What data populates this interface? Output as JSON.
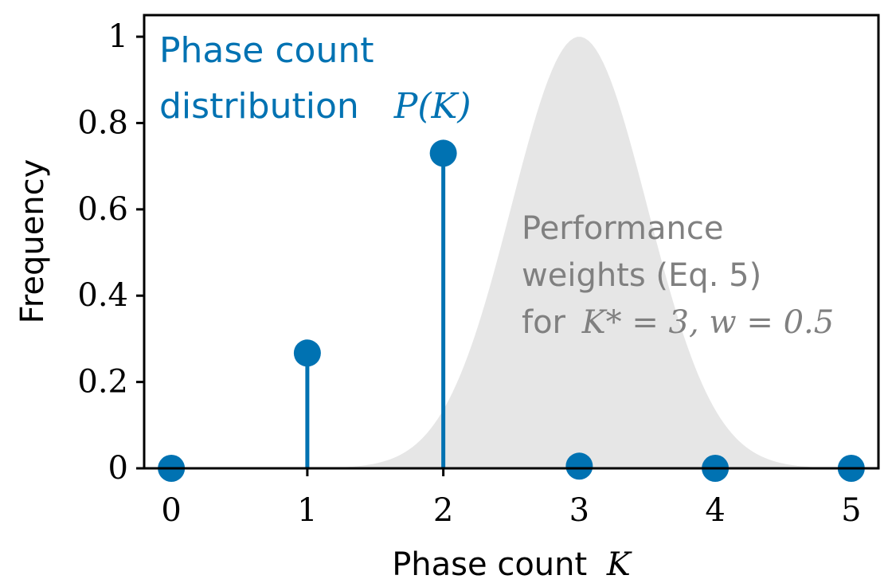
{
  "chart_data": {
    "type": "scatter",
    "style": "stem",
    "xlabel": "Phase count",
    "xlabel_math": "K",
    "ylabel": "Frequency",
    "xlim": [
      -0.2,
      5.2
    ],
    "ylim": [
      0,
      1.05
    ],
    "x_ticks": [
      0,
      1,
      2,
      3,
      4,
      5
    ],
    "x_tick_labels": [
      "0",
      "1",
      "2",
      "3",
      "4",
      "5"
    ],
    "y_ticks": [
      0,
      0.2,
      0.4,
      0.6,
      0.8,
      1
    ],
    "y_tick_labels": [
      "0",
      "0.2",
      "0.4",
      "0.6",
      "0.8",
      "1"
    ],
    "grid": false,
    "series": [
      {
        "name": "Phase count distribution",
        "name_line1": "Phase count",
        "name_line2": "distribution",
        "name_math": "P(K)",
        "color": "#0072b2",
        "x": [
          0,
          1,
          2,
          3,
          4,
          5
        ],
        "y": [
          0.0,
          0.267,
          0.73,
          0.005,
          0.0,
          0.0
        ]
      }
    ],
    "background_curve": {
      "kind": "gaussian",
      "center": 3,
      "width": 0.5,
      "peak": 1.0,
      "color": "#e6e6e6",
      "label_line1": "Performance",
      "label_line2": "weights (Eq. 5)",
      "label_line3_text": "for",
      "label_line3_math": "K* = 3, w = 0.5"
    }
  }
}
